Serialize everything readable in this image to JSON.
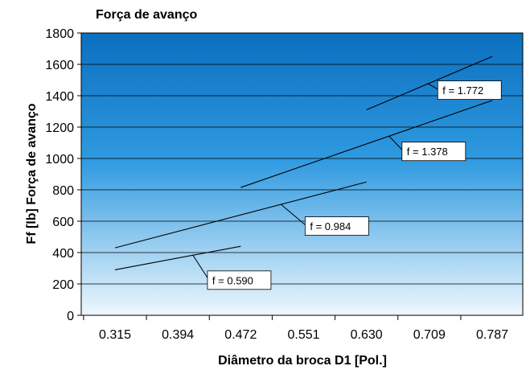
{
  "chart_data": {
    "type": "line",
    "title": "Força de avanço",
    "xlabel": "Diâmetro da broca D1 [Pol.]",
    "ylabel": "Ff [lb] Força de avanço",
    "x_ticks": [
      "0.315",
      "0.394",
      "0.472",
      "0.551",
      "0.630",
      "0.709",
      "0.787"
    ],
    "y_ticks": [
      0,
      200,
      400,
      600,
      800,
      1000,
      1200,
      1400,
      1600,
      1800
    ],
    "ylim": [
      0,
      1800
    ],
    "grid": "horizontal",
    "legend": "none",
    "series": [
      {
        "label": "f = 0.590",
        "x": [
          "0.315",
          "0.472"
        ],
        "y": [
          290,
          440
        ]
      },
      {
        "label": "f = 0.984",
        "x": [
          "0.315",
          "0.630"
        ],
        "y": [
          430,
          850
        ]
      },
      {
        "label": "f = 1.378",
        "x": [
          "0.472",
          "0.787"
        ],
        "y": [
          815,
          1370
        ]
      },
      {
        "label": "f = 1.772",
        "x": [
          "0.630",
          "0.787"
        ],
        "y": [
          1310,
          1650
        ]
      }
    ]
  },
  "colors": {
    "plot_top": "#0b6fbf",
    "plot_mid": "#2f9ae0",
    "plot_bottom": "#e8f4fc",
    "line": "#000000",
    "gridline": "#000000"
  }
}
